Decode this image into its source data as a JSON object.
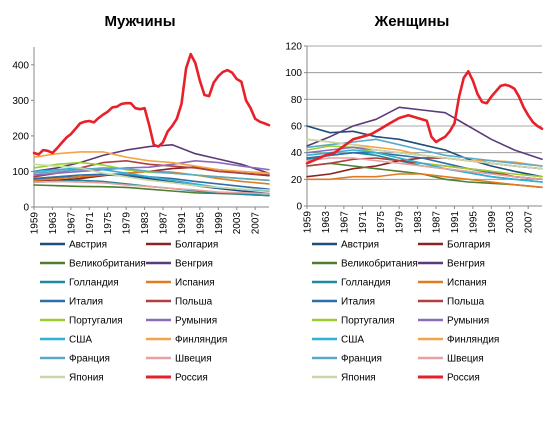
{
  "chart_data": [
    {
      "type": "line",
      "title": "Мужчины",
      "xlabel": "",
      "ylabel": "",
      "ylim": [
        0,
        450
      ],
      "yticks": [
        0,
        100,
        200,
        300,
        400
      ],
      "xticks": [
        "1959",
        "1963",
        "1967",
        "1971",
        "1975",
        "1979",
        "1983",
        "1987",
        "1991",
        "1995",
        "1999",
        "2003",
        "2007"
      ],
      "grid": false,
      "series": [
        {
          "name": "Австрия",
          "color": "#1f4e79",
          "x": [
            1959,
            1964,
            1969,
            1974,
            1979,
            1984,
            1989,
            1994,
            1999,
            2004,
            2010
          ],
          "y": [
            78,
            82,
            85,
            90,
            88,
            80,
            70,
            60,
            52,
            45,
            38
          ]
        },
        {
          "name": "Болгария",
          "color": "#8b2323",
          "x": [
            1959,
            1964,
            1969,
            1974,
            1979,
            1984,
            1989,
            1994,
            1999,
            2004,
            2010
          ],
          "y": [
            72,
            75,
            80,
            88,
            95,
            100,
            108,
            112,
            105,
            95,
            88
          ]
        },
        {
          "name": "Великобритания",
          "color": "#4f7f2f",
          "x": [
            1959,
            1964,
            1969,
            1974,
            1979,
            1984,
            1989,
            1994,
            1999,
            2004,
            2010
          ],
          "y": [
            62,
            60,
            58,
            57,
            55,
            50,
            45,
            40,
            38,
            36,
            32
          ]
        },
        {
          "name": "Венгрия",
          "color": "#5b3a7a",
          "x": [
            1959,
            1964,
            1969,
            1974,
            1979,
            1984,
            1989,
            1994,
            1999,
            2004,
            2010
          ],
          "y": [
            100,
            110,
            125,
            145,
            160,
            170,
            175,
            150,
            135,
            120,
            95
          ]
        },
        {
          "name": "Голландия",
          "color": "#1f8a9b",
          "x": [
            1959,
            1964,
            1969,
            1974,
            1979,
            1984,
            1989,
            1994,
            1999,
            2004,
            2010
          ],
          "y": [
            70,
            72,
            75,
            72,
            65,
            58,
            52,
            45,
            40,
            36,
            32
          ]
        },
        {
          "name": "Испания",
          "color": "#e07b20",
          "x": [
            1959,
            1964,
            1969,
            1974,
            1979,
            1984,
            1989,
            1994,
            1999,
            2004,
            2010
          ],
          "y": [
            75,
            80,
            85,
            90,
            95,
            100,
            98,
            90,
            80,
            72,
            65
          ]
        },
        {
          "name": "Италия",
          "color": "#2e6fa8",
          "x": [
            1959,
            1964,
            1969,
            1974,
            1979,
            1984,
            1989,
            1994,
            1999,
            2004,
            2010
          ],
          "y": [
            80,
            85,
            90,
            92,
            90,
            85,
            80,
            72,
            65,
            58,
            50
          ]
        },
        {
          "name": "Польша",
          "color": "#b04040",
          "x": [
            1959,
            1964,
            1969,
            1974,
            1979,
            1984,
            1989,
            1994,
            1999,
            2004,
            2010
          ],
          "y": [
            85,
            95,
            110,
            125,
            130,
            120,
            115,
            110,
            100,
            95,
            90
          ]
        },
        {
          "name": "Португалия",
          "color": "#9acd32",
          "x": [
            1959,
            1964,
            1969,
            1974,
            1979,
            1984,
            1989,
            1994,
            1999,
            2004,
            2010
          ],
          "y": [
            110,
            120,
            125,
            118,
            105,
            98,
            95,
            90,
            85,
            80,
            75
          ]
        },
        {
          "name": "Румыния",
          "color": "#8e6bb8",
          "x": [
            1959,
            1964,
            1969,
            1974,
            1979,
            1984,
            1989,
            1994,
            1999,
            2004,
            2010
          ],
          "y": [
            90,
            95,
            100,
            105,
            110,
            112,
            120,
            130,
            125,
            115,
            105
          ]
        },
        {
          "name": "США",
          "color": "#31b0d5",
          "x": [
            1959,
            1964,
            1969,
            1974,
            1979,
            1984,
            1989,
            1994,
            1999,
            2004,
            2010
          ],
          "y": [
            100,
            105,
            110,
            105,
            95,
            85,
            75,
            65,
            55,
            50,
            45
          ]
        },
        {
          "name": "Финляндия",
          "color": "#f4a442",
          "x": [
            1959,
            1964,
            1969,
            1974,
            1979,
            1984,
            1989,
            1994,
            1999,
            2004,
            2010
          ],
          "y": [
            140,
            150,
            155,
            155,
            140,
            130,
            125,
            115,
            105,
            100,
            95
          ]
        },
        {
          "name": "Франция",
          "color": "#5aa9c9",
          "x": [
            1959,
            1964,
            1969,
            1974,
            1979,
            1984,
            1989,
            1994,
            1999,
            2004,
            2010
          ],
          "y": [
            95,
            100,
            105,
            110,
            108,
            100,
            95,
            90,
            85,
            80,
            75
          ]
        },
        {
          "name": "Швеция",
          "color": "#e8a0a0",
          "x": [
            1959,
            1964,
            1969,
            1974,
            1979,
            1984,
            1989,
            1994,
            1999,
            2004,
            2010
          ],
          "y": [
            70,
            72,
            70,
            68,
            62,
            58,
            52,
            48,
            42,
            40,
            38
          ]
        },
        {
          "name": "Япония",
          "color": "#c8d8a8",
          "x": [
            1959,
            1964,
            1969,
            1974,
            1979,
            1984,
            1989,
            1994,
            1999,
            2004,
            2010
          ],
          "y": [
            120,
            115,
            110,
            95,
            85,
            75,
            68,
            60,
            55,
            50,
            48
          ]
        },
        {
          "name": "Россия",
          "color": "#e8202a",
          "x": [
            1959,
            1960,
            1961,
            1962,
            1963,
            1964,
            1965,
            1966,
            1967,
            1968,
            1969,
            1970,
            1971,
            1972,
            1973,
            1974,
            1975,
            1976,
            1977,
            1978,
            1979,
            1980,
            1981,
            1982,
            1983,
            1984,
            1985,
            1986,
            1987,
            1988,
            1989,
            1990,
            1991,
            1992,
            1993,
            1994,
            1995,
            1996,
            1997,
            1998,
            1999,
            2000,
            2001,
            2002,
            2003,
            2004,
            2005,
            2006,
            2007,
            2008,
            2009,
            2010
          ],
          "y": [
            152,
            148,
            160,
            158,
            152,
            165,
            180,
            195,
            205,
            220,
            235,
            240,
            242,
            238,
            250,
            260,
            268,
            280,
            282,
            290,
            292,
            292,
            278,
            275,
            278,
            230,
            175,
            170,
            182,
            212,
            228,
            248,
            290,
            390,
            430,
            405,
            355,
            315,
            312,
            350,
            368,
            380,
            385,
            378,
            360,
            352,
            300,
            278,
            248,
            240,
            235,
            230
          ]
        }
      ]
    },
    {
      "type": "line",
      "title": "Женщины",
      "xlabel": "",
      "ylabel": "",
      "ylim": [
        0,
        120
      ],
      "yticks": [
        0,
        20,
        40,
        60,
        80,
        100,
        120
      ],
      "xticks": [
        "1959",
        "1963",
        "1967",
        "1971",
        "1975",
        "1979",
        "1983",
        "1987",
        "1991",
        "1995",
        "1999",
        "2003",
        "2007"
      ],
      "grid": true,
      "series": [
        {
          "name": "Австрия",
          "color": "#1f4e79",
          "x": [
            1959,
            1964,
            1969,
            1974,
            1979,
            1984,
            1989,
            1994,
            1999,
            2004,
            2010
          ],
          "y": [
            60,
            55,
            56,
            52,
            50,
            46,
            42,
            35,
            30,
            26,
            22
          ]
        },
        {
          "name": "Болгария",
          "color": "#8b2323",
          "x": [
            1959,
            1964,
            1969,
            1974,
            1979,
            1984,
            1989,
            1994,
            1999,
            2004,
            2010
          ],
          "y": [
            22,
            24,
            28,
            30,
            34,
            36,
            36,
            34,
            32,
            30,
            28
          ]
        },
        {
          "name": "Великобритания",
          "color": "#4f7f2f",
          "x": [
            1959,
            1964,
            1969,
            1974,
            1979,
            1984,
            1989,
            1994,
            1999,
            2004,
            2010
          ],
          "y": [
            30,
            32,
            30,
            28,
            26,
            24,
            20,
            18,
            17,
            16,
            14
          ]
        },
        {
          "name": "Венгрия",
          "color": "#5b3a7a",
          "x": [
            1959,
            1964,
            1969,
            1974,
            1979,
            1984,
            1989,
            1994,
            1999,
            2004,
            2010
          ],
          "y": [
            45,
            52,
            60,
            65,
            74,
            72,
            70,
            60,
            50,
            42,
            35
          ]
        },
        {
          "name": "Голландия",
          "color": "#1f8a9b",
          "x": [
            1959,
            1964,
            1969,
            1974,
            1979,
            1984,
            1989,
            1994,
            1999,
            2004,
            2010
          ],
          "y": [
            35,
            38,
            40,
            38,
            34,
            30,
            28,
            25,
            22,
            20,
            18
          ]
        },
        {
          "name": "Испания",
          "color": "#e07b20",
          "x": [
            1959,
            1964,
            1969,
            1974,
            1979,
            1984,
            1989,
            1994,
            1999,
            2004,
            2010
          ],
          "y": [
            20,
            20,
            22,
            22,
            24,
            24,
            22,
            20,
            18,
            16,
            14
          ]
        },
        {
          "name": "Италия",
          "color": "#2e6fa8",
          "x": [
            1959,
            1964,
            1969,
            1974,
            1979,
            1984,
            1989,
            1994,
            1999,
            2004,
            2010
          ],
          "y": [
            36,
            38,
            40,
            40,
            38,
            36,
            32,
            28,
            25,
            22,
            20
          ]
        },
        {
          "name": "Польша",
          "color": "#b04040",
          "x": [
            1959,
            1964,
            1969,
            1974,
            1979,
            1984,
            1989,
            1994,
            1999,
            2004,
            2010
          ],
          "y": [
            30,
            32,
            35,
            36,
            34,
            32,
            30,
            28,
            26,
            22,
            20
          ]
        },
        {
          "name": "Португалия",
          "color": "#9acd32",
          "x": [
            1959,
            1964,
            1969,
            1974,
            1979,
            1984,
            1989,
            1994,
            1999,
            2004,
            2010
          ],
          "y": [
            42,
            45,
            44,
            40,
            36,
            32,
            30,
            28,
            26,
            24,
            22
          ]
        },
        {
          "name": "Румыния",
          "color": "#8e6bb8",
          "x": [
            1959,
            1964,
            1969,
            1974,
            1979,
            1984,
            1989,
            1994,
            1999,
            2004,
            2010
          ],
          "y": [
            40,
            42,
            44,
            42,
            40,
            38,
            36,
            34,
            32,
            30,
            28
          ]
        },
        {
          "name": "США",
          "color": "#31b0d5",
          "x": [
            1959,
            1964,
            1969,
            1974,
            1979,
            1984,
            1989,
            1994,
            1999,
            2004,
            2010
          ],
          "y": [
            38,
            40,
            42,
            40,
            36,
            32,
            28,
            25,
            22,
            20,
            18
          ]
        },
        {
          "name": "Финляндия",
          "color": "#f4a442",
          "x": [
            1959,
            1964,
            1969,
            1974,
            1979,
            1984,
            1989,
            1994,
            1999,
            2004,
            2010
          ],
          "y": [
            50,
            48,
            46,
            44,
            42,
            38,
            36,
            34,
            34,
            33,
            30
          ]
        },
        {
          "name": "Франция",
          "color": "#5aa9c9",
          "x": [
            1959,
            1964,
            1969,
            1974,
            1979,
            1984,
            1989,
            1994,
            1999,
            2004,
            2010
          ],
          "y": [
            44,
            46,
            48,
            50,
            46,
            42,
            38,
            36,
            34,
            32,
            30
          ]
        },
        {
          "name": "Швеция",
          "color": "#e8a0a0",
          "x": [
            1959,
            1964,
            1969,
            1974,
            1979,
            1984,
            1989,
            1994,
            1999,
            2004,
            2010
          ],
          "y": [
            34,
            36,
            36,
            34,
            32,
            30,
            28,
            26,
            24,
            22,
            20
          ]
        },
        {
          "name": "Япония",
          "color": "#c8d8a8",
          "x": [
            1959,
            1964,
            1969,
            1974,
            1979,
            1984,
            1989,
            1994,
            1999,
            2004,
            2010
          ],
          "y": [
            50,
            48,
            46,
            42,
            40,
            38,
            36,
            34,
            32,
            30,
            28
          ]
        },
        {
          "name": "Россия",
          "color": "#e8202a",
          "x": [
            1959,
            1961,
            1963,
            1965,
            1967,
            1969,
            1971,
            1973,
            1975,
            1977,
            1979,
            1981,
            1983,
            1985,
            1986,
            1987,
            1988,
            1989,
            1990,
            1991,
            1992,
            1993,
            1994,
            1995,
            1996,
            1997,
            1998,
            1999,
            2000,
            2001,
            2002,
            2003,
            2004,
            2005,
            2006,
            2007,
            2008,
            2009,
            2010
          ],
          "y": [
            32,
            35,
            38,
            40,
            45,
            50,
            52,
            54,
            58,
            62,
            66,
            68,
            66,
            64,
            52,
            48,
            50,
            52,
            56,
            62,
            82,
            96,
            101,
            94,
            84,
            78,
            77,
            82,
            86,
            90,
            91,
            90,
            88,
            82,
            74,
            68,
            63,
            60,
            58
          ]
        }
      ]
    }
  ]
}
